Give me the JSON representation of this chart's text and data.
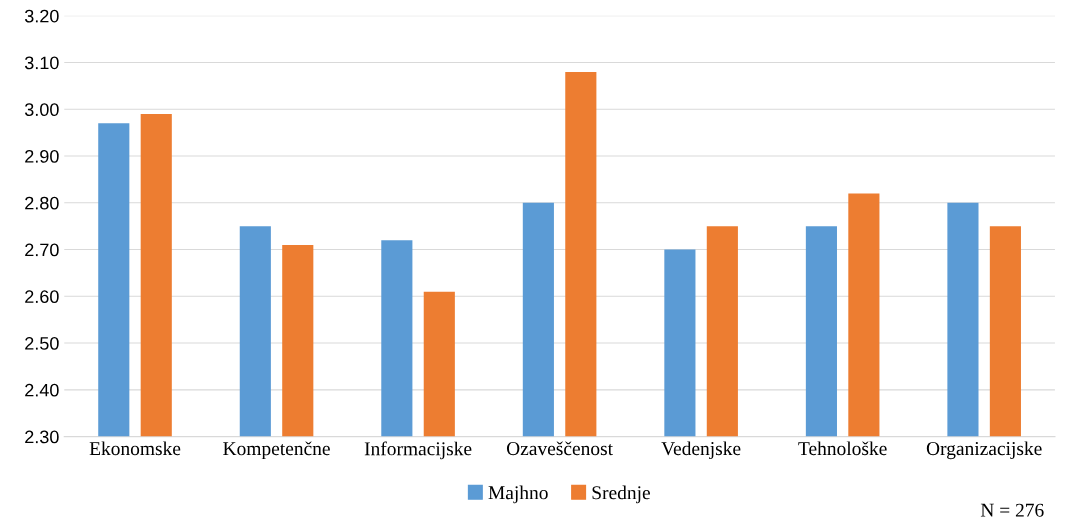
{
  "chart_data": {
    "type": "bar",
    "categories": [
      "Ekonomske",
      "Kompetenčne",
      "Informacijske",
      "Ozaveščenost",
      "Vedenjske",
      "Tehnološke",
      "Organizacijske"
    ],
    "series": [
      {
        "name": "Majhno",
        "color": "#5b9bd5",
        "values": [
          2.97,
          2.75,
          2.72,
          2.8,
          2.7,
          2.75,
          2.8
        ]
      },
      {
        "name": "Srednje",
        "color": "#ed7d31",
        "values": [
          2.99,
          2.71,
          2.61,
          3.08,
          2.75,
          2.82,
          2.75
        ]
      }
    ],
    "ylim": [
      2.3,
      3.2
    ],
    "yticks": [
      {
        "value": 2.3,
        "label": "2.30"
      },
      {
        "value": 2.4,
        "label": "2.40"
      },
      {
        "value": 2.5,
        "label": "2.50"
      },
      {
        "value": 2.6,
        "label": "2.60"
      },
      {
        "value": 2.7,
        "label": "2.70"
      },
      {
        "value": 2.8,
        "label": "2.80"
      },
      {
        "value": 2.9,
        "label": "2.90"
      },
      {
        "value": 3.0,
        "label": "3.00"
      },
      {
        "value": 3.1,
        "label": "3.10"
      },
      {
        "value": 3.2,
        "label": "3.20"
      }
    ],
    "grid": "y",
    "legend": "bottom",
    "annotations": [
      "N = 276"
    ]
  }
}
